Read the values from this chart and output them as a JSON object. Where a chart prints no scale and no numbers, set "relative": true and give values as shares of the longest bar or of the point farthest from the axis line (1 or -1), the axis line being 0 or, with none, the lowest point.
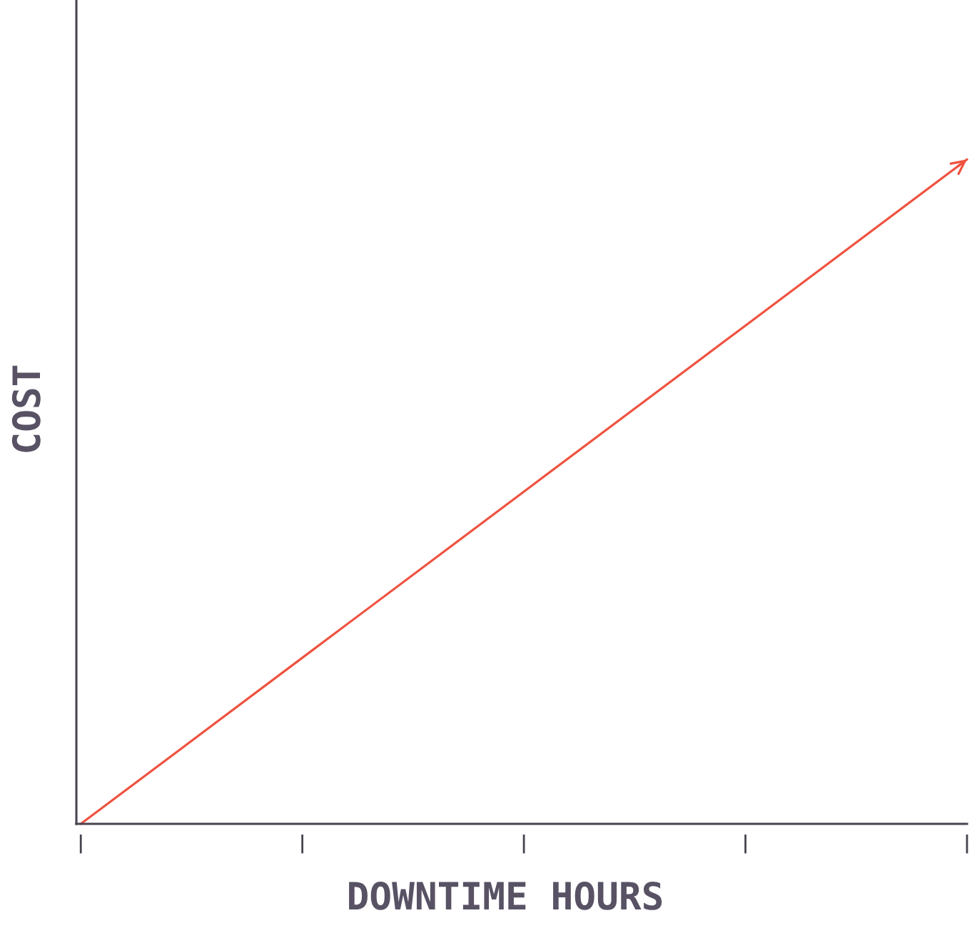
{
  "chart_data": {
    "type": "line",
    "xlabel": "DOWNTIME HOURS",
    "ylabel": "COST",
    "categories": [
      null,
      null,
      null,
      null,
      null
    ],
    "series": [
      {
        "color": "#ef5340",
        "values": [
          0,
          0.25,
          0.5,
          0.75,
          1
        ]
      }
    ],
    "relative": true,
    "line_style": "solid"
  }
}
